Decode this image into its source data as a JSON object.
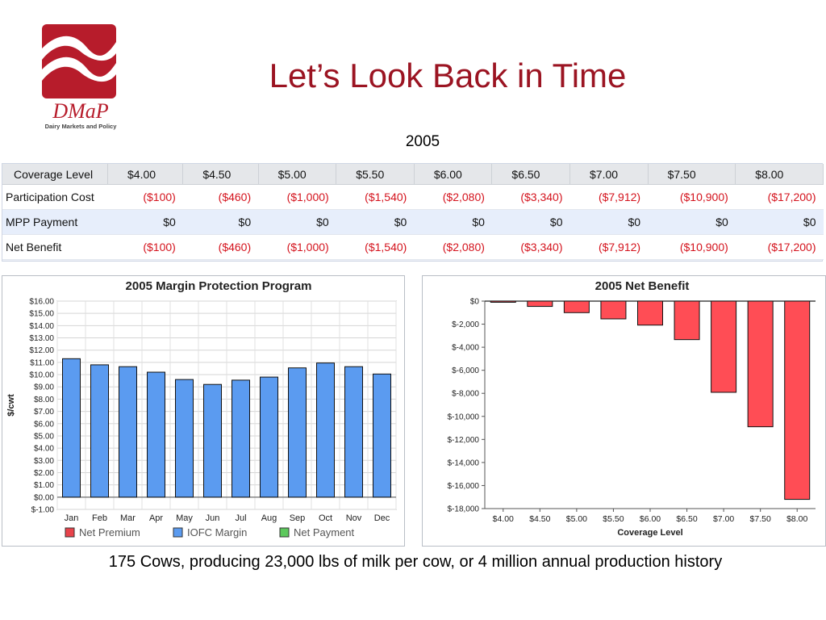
{
  "slide": {
    "title": "Let’s Look Back in Time",
    "year": "2005",
    "caption": "175 Cows, producing 23,000 lbs of milk per cow, or 4 million annual production history"
  },
  "logo": {
    "name": "DMaP",
    "subtitle": "Dairy Markets and Policy",
    "color": "#b71c2b"
  },
  "table": {
    "header": [
      "Coverage Level",
      "$4.00",
      "$4.50",
      "$5.00",
      "$5.50",
      "$6.00",
      "$6.50",
      "$7.00",
      "$7.50",
      "$8.00"
    ],
    "rows": [
      {
        "label": "Participation Cost",
        "values": [
          "($100)",
          "($460)",
          "($1,000)",
          "($1,540)",
          "($2,080)",
          "($3,340)",
          "($7,912)",
          "($10,900)",
          "($17,200)"
        ]
      },
      {
        "label": "MPP Payment",
        "values": [
          "$0",
          "$0",
          "$0",
          "$0",
          "$0",
          "$0",
          "$0",
          "$0",
          "$0"
        ]
      },
      {
        "label": "Net Benefit",
        "values": [
          "($100)",
          "($460)",
          "($1,000)",
          "($1,540)",
          "($2,080)",
          "($3,340)",
          "($7,912)",
          "($10,900)",
          "($17,200)"
        ]
      }
    ]
  },
  "chart_data": [
    {
      "type": "bar",
      "title": "2005 Margin Protection Program",
      "ylabel": "$/cwt",
      "xlabel": "",
      "categories": [
        "Jan",
        "Feb",
        "Mar",
        "Apr",
        "May",
        "Jun",
        "Jul",
        "Aug",
        "Sep",
        "Oct",
        "Nov",
        "Dec"
      ],
      "series": [
        {
          "name": "Net Premium",
          "color": "#e8434b",
          "values": [
            0,
            0,
            0,
            0,
            0,
            0,
            0,
            0,
            0,
            0,
            0,
            0
          ]
        },
        {
          "name": "IOFC Margin",
          "color": "#5b9bf0",
          "values": [
            11.3,
            10.8,
            10.65,
            10.2,
            9.6,
            9.2,
            9.55,
            9.8,
            10.55,
            10.95,
            10.65,
            10.05
          ]
        },
        {
          "name": "Net Payment",
          "color": "#5cc85c",
          "values": [
            0,
            0,
            0,
            0,
            0,
            0,
            0,
            0,
            0,
            0,
            0,
            0
          ]
        }
      ],
      "ylim": [
        -1,
        16
      ],
      "yticks": [
        "$16.00",
        "$15.00",
        "$14.00",
        "$13.00",
        "$12.00",
        "$11.00",
        "$10.00",
        "$9.00",
        "$8.00",
        "$7.00",
        "$6.00",
        "$5.00",
        "$4.00",
        "$3.00",
        "$2.00",
        "$1.00",
        "$0.00",
        "$-1.00"
      ],
      "grid": true,
      "legend_position": "bottom"
    },
    {
      "type": "bar",
      "title": "2005 Net Benefit",
      "xlabel": "Coverage Level",
      "ylabel": "",
      "categories": [
        "$4.00",
        "$4.50",
        "$5.00",
        "$5.50",
        "$6.00",
        "$6.50",
        "$7.00",
        "$7.50",
        "$8.00"
      ],
      "values": [
        -100,
        -460,
        -1000,
        -1540,
        -2080,
        -3340,
        -7912,
        -10900,
        -17200
      ],
      "color": "#ff4d55",
      "ylim": [
        -18000,
        0
      ],
      "yticks": [
        "$0",
        "$-2,000",
        "$-4,000",
        "$-6,000",
        "$-8,000",
        "$-10,000",
        "$-12,000",
        "$-14,000",
        "$-16,000",
        "$-18,000"
      ],
      "grid": false
    }
  ]
}
